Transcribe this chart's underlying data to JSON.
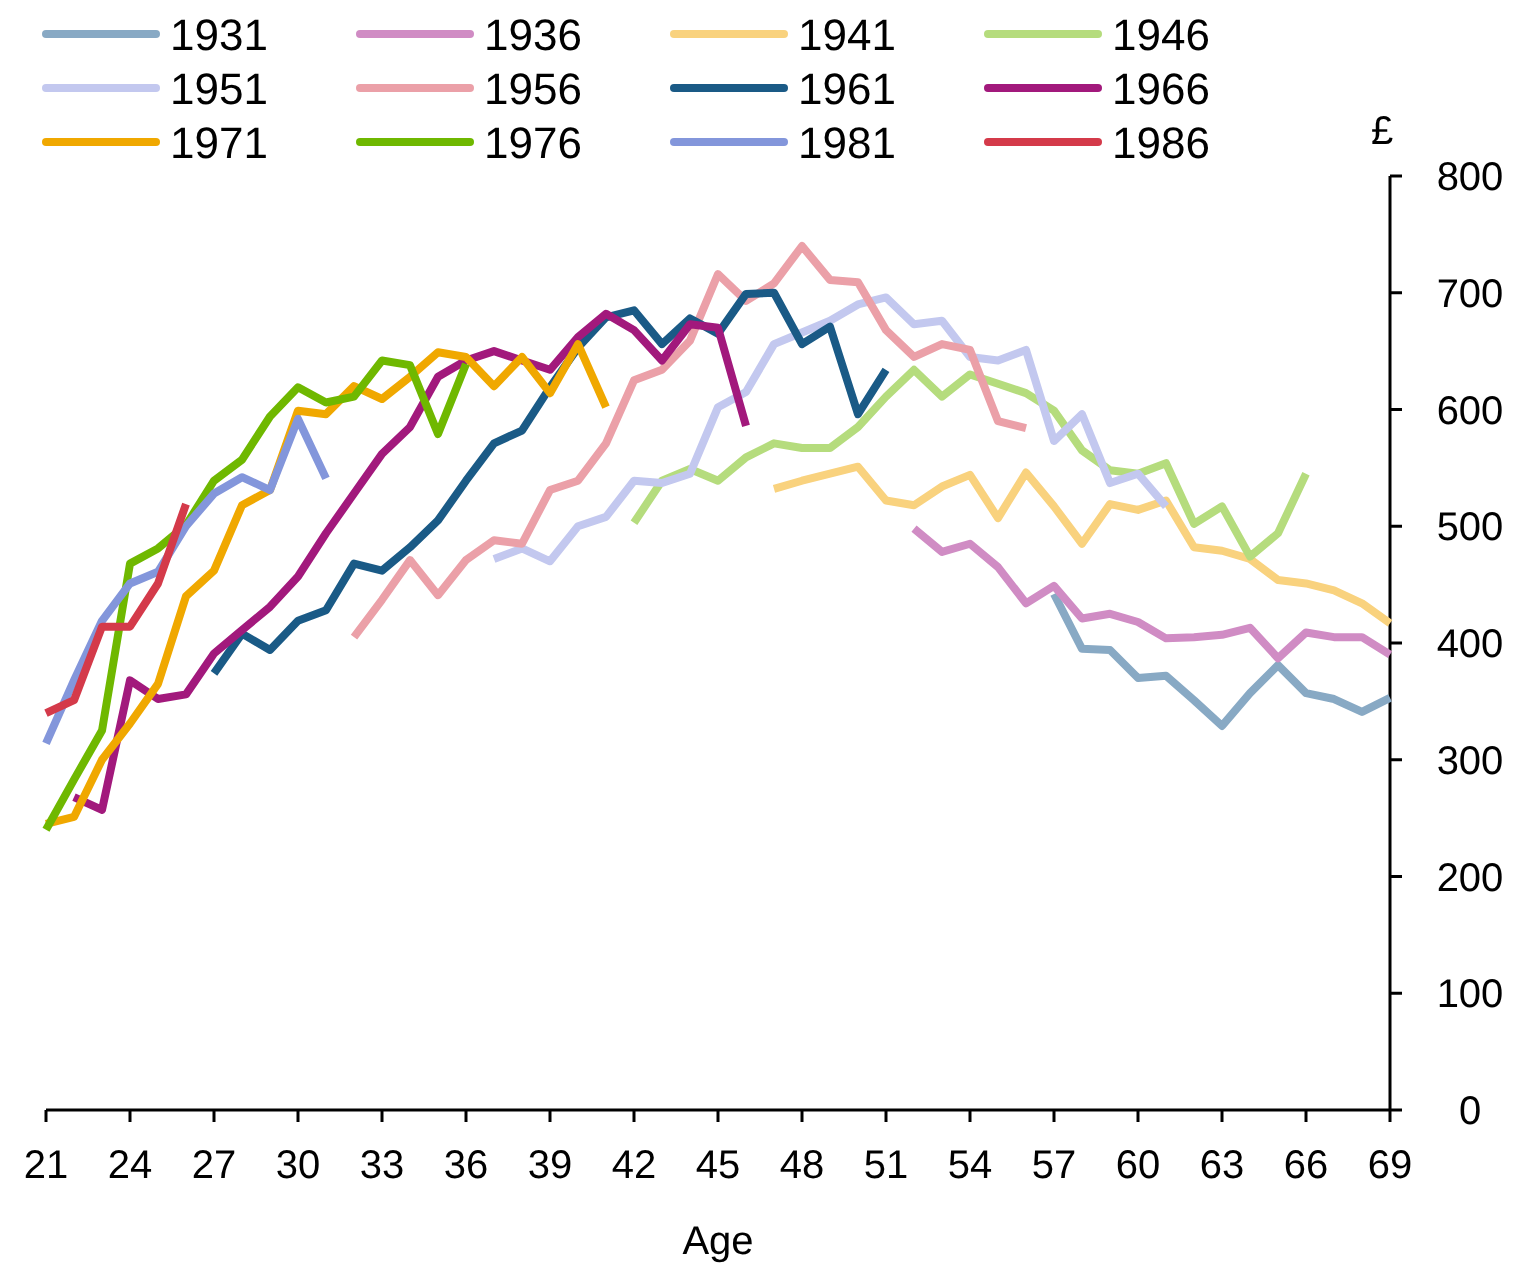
{
  "chart_data": {
    "type": "line",
    "xlabel": "Age",
    "ylabel": "£",
    "xlim": [
      21,
      69
    ],
    "xticks": [
      21,
      24,
      27,
      30,
      33,
      36,
      39,
      42,
      45,
      48,
      51,
      54,
      57,
      60,
      63,
      66,
      69
    ],
    "ylim": [
      0,
      800
    ],
    "yticks": [
      0,
      100,
      200,
      300,
      400,
      500,
      600,
      700,
      800
    ],
    "grid": false,
    "legend": "top",
    "marker": "none",
    "line_style": "solid",
    "series": [
      {
        "name": "1931",
        "color": "#88a9c4",
        "x": [
          57,
          58,
          59,
          60,
          61,
          62,
          63,
          64,
          65,
          66,
          67,
          68,
          69
        ],
        "values": [
          442,
          395,
          394,
          370,
          372,
          351,
          329,
          357,
          381,
          357,
          352,
          341,
          353
        ]
      },
      {
        "name": "1936",
        "color": "#d08cc4",
        "x": [
          52,
          53,
          54,
          55,
          56,
          57,
          58,
          59,
          60,
          61,
          62,
          63,
          64,
          65,
          66,
          67,
          68,
          69
        ],
        "values": [
          498,
          478,
          485,
          465,
          434,
          449,
          421,
          425,
          418,
          404,
          405,
          407,
          413,
          387,
          409,
          405,
          405,
          390
        ]
      },
      {
        "name": "1941",
        "color": "#f9d27e",
        "x": [
          47,
          48,
          49,
          50,
          51,
          52,
          53,
          54,
          55,
          56,
          57,
          58,
          59,
          60,
          61,
          62,
          63,
          64,
          65,
          66,
          67,
          68,
          69
        ],
        "values": [
          532,
          539,
          545,
          551,
          522,
          518,
          534,
          544,
          507,
          546,
          517,
          485,
          519,
          514,
          522,
          482,
          479,
          472,
          454,
          451,
          445,
          434,
          417
        ]
      },
      {
        "name": "1946",
        "color": "#b5dc7d",
        "x": [
          42,
          43,
          44,
          45,
          46,
          47,
          48,
          49,
          50,
          51,
          52,
          53,
          54,
          55,
          56,
          57,
          58,
          59,
          60,
          61,
          62,
          63,
          64,
          65,
          66
        ],
        "values": [
          503,
          539,
          549,
          539,
          559,
          571,
          567,
          567,
          585,
          611,
          634,
          611,
          630,
          622,
          614,
          599,
          565,
          548,
          545,
          554,
          502,
          517,
          474,
          494,
          545
        ]
      },
      {
        "name": "1951",
        "color": "#c3c8ef",
        "x": [
          37,
          38,
          39,
          40,
          41,
          42,
          43,
          44,
          45,
          46,
          47,
          48,
          49,
          50,
          51,
          52,
          53,
          54,
          55,
          56,
          57,
          58,
          59,
          60,
          61
        ],
        "values": [
          472,
          481,
          470,
          500,
          508,
          539,
          537,
          545,
          602,
          615,
          656,
          666,
          676,
          690,
          696,
          673,
          676,
          645,
          642,
          651,
          573,
          596,
          537,
          545,
          517
        ]
      },
      {
        "name": "1956",
        "color": "#eba0a8",
        "x": [
          32,
          33,
          34,
          35,
          36,
          37,
          38,
          39,
          40,
          41,
          42,
          43,
          44,
          45,
          46,
          47,
          48,
          49,
          50,
          51,
          52,
          53,
          54,
          55,
          56
        ],
        "values": [
          405,
          437,
          471,
          441,
          471,
          488,
          485,
          531,
          539,
          571,
          625,
          634,
          659,
          716,
          693,
          708,
          740,
          711,
          709,
          668,
          645,
          656,
          651,
          590,
          584
        ]
      },
      {
        "name": "1961",
        "color": "#1a5a86",
        "x": [
          27,
          28,
          29,
          30,
          31,
          32,
          33,
          34,
          35,
          36,
          37,
          38,
          39,
          40,
          41,
          42,
          43,
          44,
          45,
          46,
          47,
          48,
          49,
          50,
          51
        ],
        "values": [
          374,
          408,
          394,
          419,
          428,
          468,
          462,
          482,
          505,
          539,
          571,
          582,
          619,
          653,
          679,
          685,
          656,
          678,
          665,
          699,
          700,
          656,
          671,
          596,
          634
        ]
      },
      {
        "name": "1966",
        "color": "#a2197c",
        "x": [
          22,
          23,
          24,
          25,
          26,
          27,
          28,
          29,
          30,
          31,
          32,
          33,
          34,
          35,
          36,
          37,
          38,
          39,
          40,
          41,
          42,
          43,
          44,
          45,
          46
        ],
        "values": [
          268,
          257,
          368,
          352,
          356,
          391,
          411,
          431,
          457,
          494,
          528,
          562,
          585,
          628,
          642,
          650,
          642,
          634,
          662,
          682,
          668,
          642,
          673,
          670,
          586
        ]
      },
      {
        "name": "1971",
        "color": "#f0a800",
        "x": [
          21,
          22,
          23,
          24,
          25,
          26,
          27,
          28,
          29,
          30,
          31,
          32,
          33,
          34,
          35,
          36,
          37,
          38,
          39,
          40,
          41
        ],
        "values": [
          245,
          251,
          300,
          331,
          365,
          440,
          462,
          518,
          531,
          599,
          596,
          620,
          609,
          628,
          649,
          645,
          620,
          645,
          614,
          656,
          602
        ]
      },
      {
        "name": "1976",
        "color": "#6fb800",
        "x": [
          21,
          22,
          23,
          24,
          25,
          26,
          27,
          28,
          29,
          30,
          31,
          32,
          33,
          34,
          35,
          36
        ],
        "values": [
          240,
          283,
          325,
          468,
          481,
          501,
          539,
          557,
          594,
          619,
          606,
          611,
          642,
          638,
          579,
          639
        ]
      },
      {
        "name": "1981",
        "color": "#8396db",
        "x": [
          21,
          22,
          23,
          24,
          25,
          26,
          27,
          28,
          29,
          30,
          31
        ],
        "values": [
          314,
          368,
          419,
          451,
          461,
          500,
          528,
          542,
          531,
          592,
          541
        ]
      },
      {
        "name": "1986",
        "color": "#d43a4a",
        "x": [
          21,
          22,
          23,
          24,
          25,
          26
        ],
        "values": [
          340,
          351,
          414,
          414,
          451,
          519
        ]
      }
    ]
  }
}
